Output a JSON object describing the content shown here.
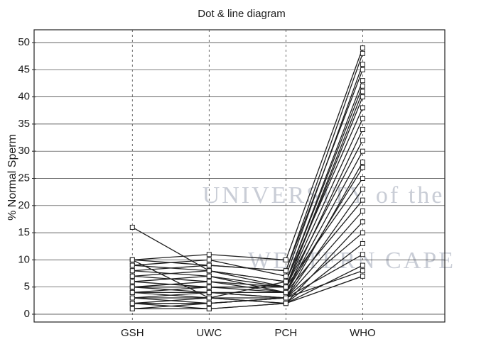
{
  "chart_data": {
    "type": "dot-line",
    "title": "Dot & line diagram",
    "y_label": "% Normal Sperm",
    "watermark": [
      "UNIVERSITY of the",
      "WESTERN CAPE"
    ],
    "categories": [
      "GSH",
      "UWC",
      "PCH",
      "WHO"
    ],
    "color": "#1f1f1f",
    "ylim": [
      0,
      50
    ],
    "yticks": [
      0,
      5,
      10,
      15,
      20,
      25,
      30,
      35,
      40,
      45,
      50
    ],
    "grid": true,
    "series": [
      {
        "values": [
          16,
          8,
          5,
          41
        ]
      },
      {
        "values": [
          10,
          11,
          10,
          49
        ]
      },
      {
        "values": [
          10,
          9,
          8,
          48
        ]
      },
      {
        "values": [
          9,
          10,
          7,
          46
        ]
      },
      {
        "values": [
          9,
          8,
          6,
          43
        ]
      },
      {
        "values": [
          8,
          9,
          8,
          45
        ]
      },
      {
        "values": [
          8,
          7,
          5,
          40
        ]
      },
      {
        "values": [
          7,
          8,
          6,
          38
        ]
      },
      {
        "values": [
          7,
          6,
          5,
          36
        ]
      },
      {
        "values": [
          6,
          7,
          4,
          34
        ]
      },
      {
        "values": [
          6,
          5,
          5,
          32
        ]
      },
      {
        "values": [
          5,
          6,
          4,
          30
        ]
      },
      {
        "values": [
          5,
          4,
          3,
          28
        ]
      },
      {
        "values": [
          5,
          5,
          4,
          27
        ]
      },
      {
        "values": [
          4,
          5,
          5,
          25
        ]
      },
      {
        "values": [
          4,
          3,
          3,
          23
        ]
      },
      {
        "values": [
          4,
          4,
          4,
          21
        ]
      },
      {
        "values": [
          3,
          4,
          3,
          19
        ]
      },
      {
        "values": [
          3,
          3,
          2,
          17
        ]
      },
      {
        "values": [
          3,
          2,
          3,
          15
        ]
      },
      {
        "values": [
          2,
          3,
          2,
          13
        ]
      },
      {
        "values": [
          2,
          2,
          3,
          11
        ]
      },
      {
        "values": [
          2,
          1,
          2,
          9
        ]
      },
      {
        "values": [
          1,
          2,
          3,
          8
        ]
      },
      {
        "values": [
          1,
          1,
          2,
          7
        ]
      },
      {
        "values": [
          10,
          3,
          6,
          42
        ]
      }
    ]
  }
}
